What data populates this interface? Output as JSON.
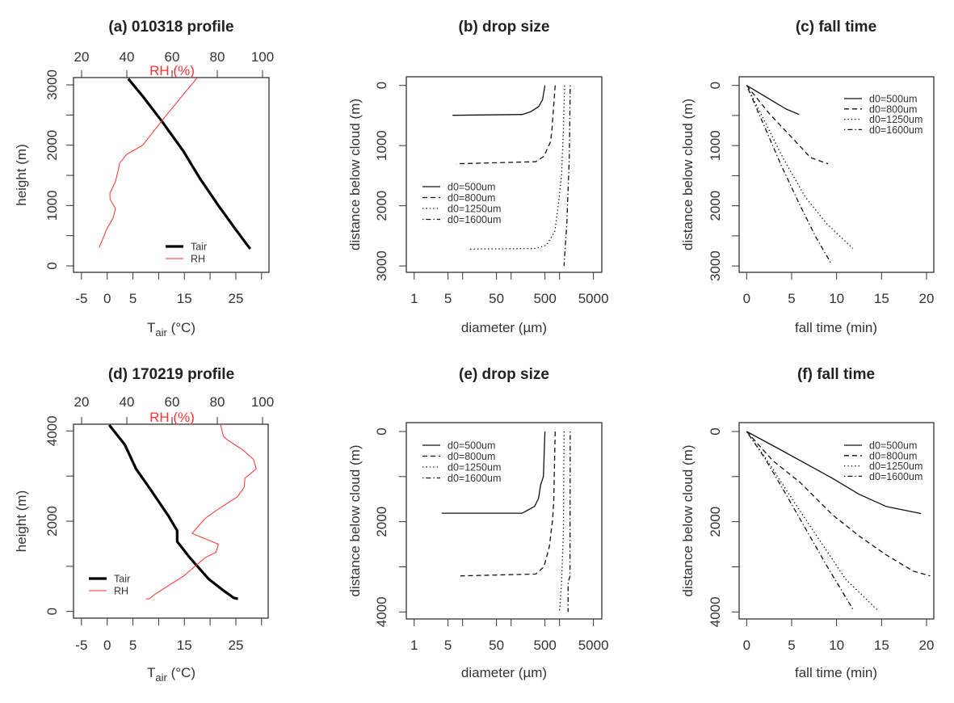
{
  "colors": {
    "tair": "#000000",
    "rh": "#ff3030",
    "axis": "#333333"
  },
  "chart_data": [
    {
      "id": "a",
      "type": "line",
      "title": "(a) 010318 profile",
      "xlabel_main": "T",
      "xlabel_sub": "air",
      "xlabel_unit": " (°C)",
      "ylabel": "height (m)",
      "x2label": "RH (%)",
      "xlim": [
        -5,
        30
      ],
      "x2lim": [
        20,
        100
      ],
      "ylim": [
        0,
        3000
      ],
      "xticks": [
        -5,
        0,
        5,
        10,
        15,
        20,
        25,
        30
      ],
      "xtick_labels": [
        "-5",
        "0",
        "5",
        "",
        "15",
        "",
        "25",
        ""
      ],
      "x2ticks": [
        20,
        40,
        60,
        80,
        100
      ],
      "x2tick_labels": [
        "20",
        "40",
        "60",
        "80",
        "100"
      ],
      "yticks": [
        0,
        500,
        1000,
        1500,
        2000,
        2500,
        3000
      ],
      "ytick_labels": [
        "0",
        "",
        "1000",
        "",
        "2000",
        "",
        "3000"
      ],
      "legend": [
        "Tair",
        "RH"
      ],
      "legend_position": "bottom-right",
      "series": [
        {
          "name": "Tair",
          "axis": "x",
          "x": [
            4.1,
            7,
            10.6,
            14.8,
            18,
            21.6,
            25,
            27.8
          ],
          "y": [
            3100,
            2800,
            2400,
            1900,
            1450,
            1000,
            600,
            280
          ]
        },
        {
          "name": "RH",
          "axis": "x2",
          "x": [
            71.4,
            63,
            55.4,
            47,
            40,
            36.8,
            36.3,
            35,
            32.5,
            32.6,
            35,
            34,
            31,
            27.8
          ],
          "y": [
            3130,
            2750,
            2400,
            2000,
            1850,
            1700,
            1600,
            1400,
            1200,
            1100,
            950,
            800,
            600,
            300
          ]
        }
      ]
    },
    {
      "id": "b",
      "type": "line",
      "title": "(b) drop size",
      "xlabel": "diameter (µm)",
      "ylabel": "distance below cloud (m)",
      "xscale": "log",
      "xlim": [
        1,
        5000
      ],
      "ylim": [
        3000,
        0
      ],
      "xticks": [
        1,
        5,
        10,
        50,
        100,
        500,
        1000,
        5000
      ],
      "xtick_labels": [
        "1",
        "5",
        "",
        "50",
        "",
        "500",
        "",
        "5000"
      ],
      "yticks": [
        0,
        1000,
        2000,
        3000
      ],
      "ytick_labels": [
        "0",
        "1000",
        "2000",
        "3000"
      ],
      "legend": [
        "d0=500um",
        "d0=800um",
        "d0=1250um",
        "d0=1600um"
      ],
      "legend_position": "center-left",
      "series": [
        {
          "name": "d0=500um",
          "x": [
            500,
            447,
            371,
            251,
            170,
            6.2
          ],
          "y": [
            0,
            237,
            350,
            439,
            484,
            497
          ]
        },
        {
          "name": "d0=800um",
          "x": [
            813,
            696,
            655,
            477,
            324,
            7.4
          ],
          "y": [
            0,
            730,
            930,
            1178,
            1267,
            1303
          ]
        },
        {
          "name": "d0=1250um",
          "x": [
            1270,
            1200,
            1100,
            960,
            795,
            540,
            324,
            13.2
          ],
          "y": [
            0,
            730,
            1490,
            1940,
            2430,
            2655,
            2710,
            2720
          ]
        },
        {
          "name": "d0=1600um",
          "x": [
            1660,
            1590,
            1410,
            1235
          ],
          "y": [
            0,
            1178,
            2297,
            3000
          ]
        }
      ]
    },
    {
      "id": "c",
      "type": "line",
      "title": "(c) fall time",
      "xlabel": "fall time (min)",
      "ylabel": "distance below cloud (m)",
      "xlim": [
        0,
        20
      ],
      "ylim": [
        3000,
        0
      ],
      "xticks": [
        0,
        5,
        10,
        15,
        20
      ],
      "xtick_labels": [
        "0",
        "5",
        "10",
        "15",
        "20"
      ],
      "yticks": [
        0,
        500,
        1000,
        1500,
        2000,
        2500,
        3000
      ],
      "ytick_labels": [
        "0",
        "",
        "1000",
        "",
        "2000",
        "",
        "3000"
      ],
      "legend": [
        "d0=500um",
        "d0=800um",
        "d0=1250um",
        "d0=1600um"
      ],
      "legend_position": "top-right",
      "series": [
        {
          "name": "d0=500um",
          "x": [
            0,
            2.9,
            4.4,
            5.84
          ],
          "y": [
            0,
            260,
            394,
            484
          ]
        },
        {
          "name": "d0=800um",
          "x": [
            0,
            2.6,
            5.3,
            7.1,
            9.04
          ],
          "y": [
            0,
            484,
            909,
            1200,
            1303
          ]
        },
        {
          "name": "d0=1250um",
          "x": [
            0,
            2.0,
            4.1,
            6.5,
            8.9,
            11.8
          ],
          "y": [
            0,
            596,
            1222,
            1850,
            2297,
            2710
          ]
        },
        {
          "name": "d0=1600um",
          "x": [
            0,
            1.86,
            3.8,
            5.9,
            7.7,
            9.43
          ],
          "y": [
            0,
            640,
            1312,
            1984,
            2521,
            2969
          ]
        }
      ]
    },
    {
      "id": "d",
      "type": "line",
      "title": "(d) 170219 profile",
      "xlabel_main": "T",
      "xlabel_sub": "air",
      "xlabel_unit": " (°C)",
      "ylabel": "height (m)",
      "x2label": "RH (%)",
      "xlim": [
        -5,
        30
      ],
      "x2lim": [
        20,
        100
      ],
      "ylim": [
        0,
        4000
      ],
      "xticks": [
        -5,
        0,
        5,
        10,
        15,
        20,
        25,
        30
      ],
      "xtick_labels": [
        "-5",
        "0",
        "5",
        "",
        "15",
        "",
        "25",
        ""
      ],
      "x2ticks": [
        20,
        40,
        60,
        80,
        100
      ],
      "x2tick_labels": [
        "20",
        "40",
        "60",
        "80",
        "100"
      ],
      "yticks": [
        0,
        1000,
        2000,
        3000,
        4000
      ],
      "ytick_labels": [
        "0",
        "",
        "2000",
        "",
        "4000"
      ],
      "legend": [
        "Tair",
        "RH"
      ],
      "legend_position": "bottom-left",
      "series": [
        {
          "name": "Tair",
          "axis": "x",
          "x": [
            0.4,
            3.4,
            5.6,
            8.5,
            12,
            13.6,
            13.6,
            16,
            19.7,
            22.4,
            24.6,
            25.4
          ],
          "y": [
            4130,
            3700,
            3160,
            2690,
            2100,
            1790,
            1550,
            1200,
            720,
            480,
            300,
            280
          ]
        },
        {
          "name": "RH",
          "axis": "x2",
          "x": [
            81.5,
            82.7,
            84,
            91.3,
            96,
            97.2,
            92.2,
            91.9,
            88.9,
            80.5,
            74.6,
            72,
            68.9,
            80.5,
            79.4,
            74.6,
            65,
            55.5,
            51.9,
            49.9,
            48.4
          ],
          "y": [
            4130,
            3880,
            3820,
            3580,
            3370,
            3160,
            2955,
            2750,
            2540,
            2270,
            2060,
            1910,
            1730,
            1490,
            1310,
            1190,
            780,
            480,
            360,
            280,
            280
          ]
        }
      ]
    },
    {
      "id": "e",
      "type": "line",
      "title": "(e) drop size",
      "xlabel": "diameter (µm)",
      "ylabel": "distance below cloud (m)",
      "xscale": "log",
      "xlim": [
        1,
        5000
      ],
      "ylim": [
        4000,
        0
      ],
      "xticks": [
        1,
        5,
        10,
        50,
        100,
        500,
        1000,
        5000
      ],
      "xtick_labels": [
        "1",
        "5",
        "",
        "50",
        "",
        "500",
        "",
        "5000"
      ],
      "yticks": [
        0,
        1000,
        2000,
        3000,
        4000
      ],
      "ytick_labels": [
        "0",
        "",
        "2000",
        "",
        "4000"
      ],
      "legend": [
        "d0=500um",
        "d0=800um",
        "d0=1250um",
        "d0=1600um"
      ],
      "legend_position": "top-left",
      "series": [
        {
          "name": "d0=500um",
          "x": [
            500,
            464,
            408,
            368,
            305,
            170,
            3.7
          ],
          "y": [
            0,
            1000,
            1182,
            1480,
            1660,
            1810,
            1810
          ]
        },
        {
          "name": "d0=800um",
          "x": [
            813,
            760,
            720,
            615,
            477,
            324,
            9
          ],
          "y": [
            0,
            1540,
            1960,
            2555,
            3000,
            3160,
            3200
          ]
        },
        {
          "name": "d0=1250um",
          "x": [
            1240,
            1200,
            1100,
            1000
          ],
          "y": [
            0,
            2200,
            3340,
            3970
          ]
        },
        {
          "name": "d0=1600um",
          "x": [
            1660,
            1640,
            1500,
            1500
          ],
          "y": [
            0,
            3210,
            3340,
            4000
          ]
        }
      ]
    },
    {
      "id": "f",
      "type": "line",
      "title": "(f) fall time",
      "xlabel": "fall time (min)",
      "ylabel": "distance below cloud (m)",
      "xlim": [
        0,
        20
      ],
      "ylim": [
        4000,
        0
      ],
      "xticks": [
        0,
        5,
        10,
        15,
        20
      ],
      "xtick_labels": [
        "0",
        "5",
        "10",
        "15",
        "20"
      ],
      "yticks": [
        0,
        1000,
        2000,
        3000,
        4000
      ],
      "ytick_labels": [
        "0",
        "",
        "2000",
        "",
        "4000"
      ],
      "legend": [
        "d0=500um",
        "d0=800um",
        "d0=1250um",
        "d0=1600um"
      ],
      "legend_position": "top-right",
      "series": [
        {
          "name": "d0=500um",
          "x": [
            0,
            3.5,
            6.5,
            9.5,
            12.5,
            15.5,
            19.4
          ],
          "y": [
            0,
            376,
            704,
            1033,
            1391,
            1660,
            1820
          ]
        },
        {
          "name": "d0=800um",
          "x": [
            0,
            2.9,
            5.9,
            9.5,
            12.5,
            15.5,
            18.5,
            20.4
          ],
          "y": [
            0,
            645,
            1122,
            1840,
            2316,
            2734,
            3093,
            3200
          ]
        },
        {
          "name": "d0=1250um",
          "x": [
            0,
            2.3,
            5,
            8,
            11,
            14.7
          ],
          "y": [
            0,
            645,
            1480,
            2376,
            3272,
            3988
          ]
        },
        {
          "name": "d0=1600um",
          "x": [
            0,
            2,
            4.1,
            6.5,
            8.9,
            11.9
          ],
          "y": [
            0,
            585,
            1301,
            2137,
            2973,
            3970
          ]
        }
      ]
    }
  ]
}
